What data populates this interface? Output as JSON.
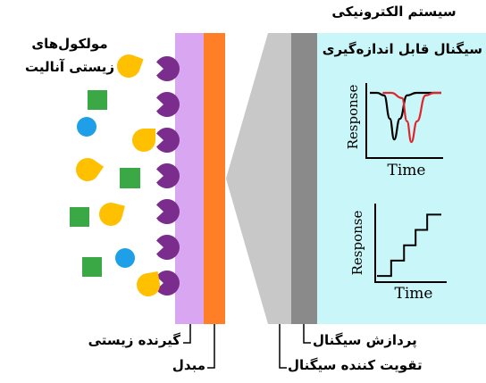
{
  "labels": {
    "analytes": [
      "مولکول‌های",
      "زیستی آنالیت"
    ],
    "electronic_system": "سیستم الکترونیکی",
    "measurable_signal": "سیگنال قابل اندازه‌گیری",
    "bioreceptor": "گیرنده زیستی",
    "transducer": "مبدل",
    "signal_processing": "پردازش سیگنال",
    "signal_amplifier": "تقویت کننده سیگنال"
  },
  "colors": {
    "bioreceptor_layer": "#d9a7f2",
    "transducer_layer": "#ff7f27",
    "receptor": "#7b2d8e",
    "analyte_wedge": "#ffc000",
    "analyte_square": "#3aa845",
    "analyte_circle": "#1e9fe8",
    "amplifier": "#c8c8c8",
    "processor": "#8a8a8a",
    "display": "#c9f6f8",
    "trace_black": "#000000",
    "trace_red": "#e0262b"
  },
  "graphs": {
    "top": {
      "ylabel": "Response",
      "xlabel": "Time"
    },
    "bottom": {
      "ylabel": "Response",
      "xlabel": "Time"
    }
  },
  "chart_data": [
    {
      "type": "line",
      "xlabel": "Time",
      "ylabel": "Response",
      "series": [
        {
          "color": "#000000",
          "x": [
            0,
            0.1,
            0.2,
            0.28,
            0.34,
            0.42,
            0.52,
            0.65,
            0.8,
            1.0
          ],
          "y": [
            1.0,
            1.0,
            0.95,
            0.5,
            0.1,
            0.5,
            0.95,
            1.0,
            1.0,
            1.0
          ]
        },
        {
          "color": "#e0262b",
          "x": [
            0.18,
            0.3,
            0.45,
            0.52,
            0.58,
            0.66,
            0.78,
            0.9,
            1.0
          ],
          "y": [
            1.0,
            1.0,
            0.9,
            0.45,
            0.05,
            0.45,
            0.95,
            1.0,
            1.0
          ]
        }
      ]
    },
    {
      "type": "line",
      "xlabel": "Time",
      "ylabel": "Response",
      "series": [
        {
          "color": "#000000",
          "step": true,
          "x": [
            0,
            0.22,
            0.42,
            0.6,
            0.78,
            1.0
          ],
          "y": [
            0.08,
            0.28,
            0.48,
            0.68,
            0.88,
            0.88
          ]
        }
      ]
    }
  ]
}
